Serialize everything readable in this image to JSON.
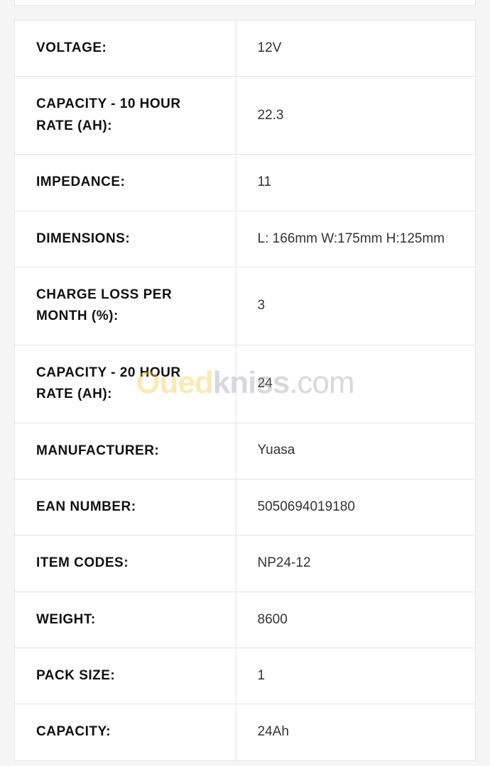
{
  "spec_table": {
    "rows": [
      {
        "label": "VOLTAGE:",
        "value": "12V"
      },
      {
        "label": "CAPACITY - 10 HOUR RATE (AH):",
        "value": "22.3"
      },
      {
        "label": "IMPEDANCE:",
        "value": "11"
      },
      {
        "label": "DIMENSIONS:",
        "value": "L: 166mm W:175mm H:125mm"
      },
      {
        "label": "CHARGE LOSS PER MONTH (%):",
        "value": "3"
      },
      {
        "label": "CAPACITY - 20 HOUR RATE (AH):",
        "value": "24"
      },
      {
        "label": "MANUFACTURER:",
        "value": "Yuasa"
      },
      {
        "label": "EAN NUMBER:",
        "value": "5050694019180"
      },
      {
        "label": "ITEM CODES:",
        "value": "NP24-12"
      },
      {
        "label": "WEIGHT:",
        "value": "8600"
      },
      {
        "label": "PACK SIZE:",
        "value": "1"
      },
      {
        "label": "CAPACITY:",
        "value": "24Ah"
      }
    ]
  },
  "watermark": {
    "part1": {
      "text": "Oued",
      "color": "#f7c948"
    },
    "part2": {
      "text": "kniss",
      "color": "#9aa3ab"
    },
    "part3": {
      "text": ".com",
      "color": "#9aa3ab"
    }
  }
}
